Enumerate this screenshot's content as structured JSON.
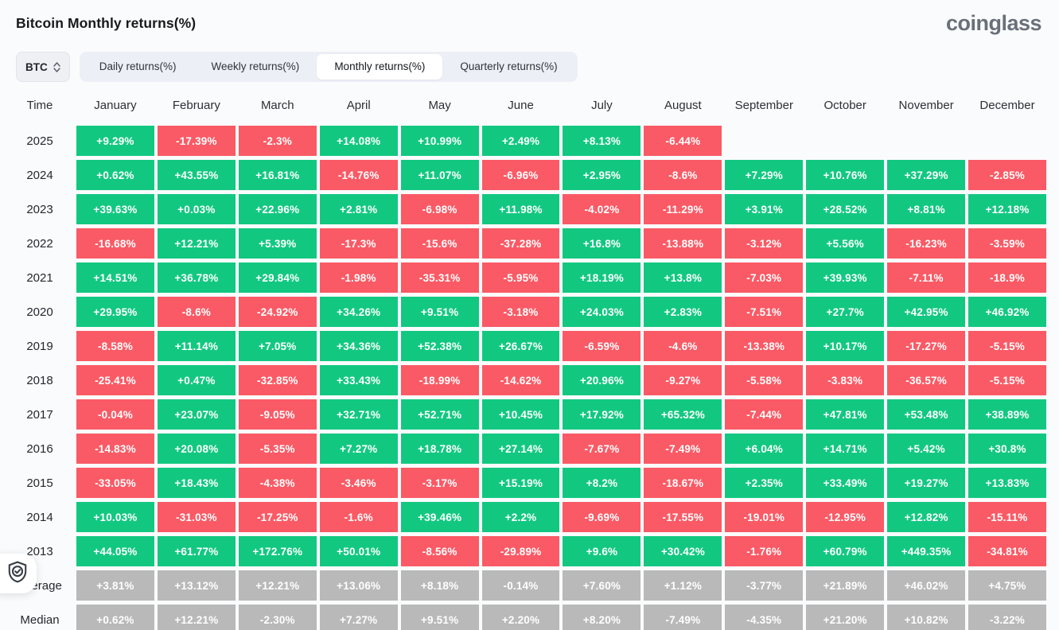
{
  "header": {
    "title": "Bitcoin Monthly returns(%)",
    "logo": "coinglass"
  },
  "controls": {
    "symbol_select": {
      "value": "BTC"
    },
    "tabs": [
      {
        "label": "Daily returns(%)",
        "active": false
      },
      {
        "label": "Weekly returns(%)",
        "active": false
      },
      {
        "label": "Monthly returns(%)",
        "active": true
      },
      {
        "label": "Quarterly returns(%)",
        "active": false
      }
    ]
  },
  "colors": {
    "positive": "#12c881",
    "negative": "#fa5a65",
    "neutral": "#b9b9b9"
  },
  "table": {
    "columns": [
      "Time",
      "January",
      "February",
      "March",
      "April",
      "May",
      "June",
      "July",
      "August",
      "September",
      "October",
      "November",
      "December"
    ],
    "rows": [
      {
        "label": "2025",
        "type": "year",
        "values": [
          "+9.29%",
          "-17.39%",
          "-2.3%",
          "+14.08%",
          "+10.99%",
          "+2.49%",
          "+8.13%",
          "-6.44%",
          "",
          "",
          "",
          ""
        ]
      },
      {
        "label": "2024",
        "type": "year",
        "values": [
          "+0.62%",
          "+43.55%",
          "+16.81%",
          "-14.76%",
          "+11.07%",
          "-6.96%",
          "+2.95%",
          "-8.6%",
          "+7.29%",
          "+10.76%",
          "+37.29%",
          "-2.85%"
        ]
      },
      {
        "label": "2023",
        "type": "year",
        "values": [
          "+39.63%",
          "+0.03%",
          "+22.96%",
          "+2.81%",
          "-6.98%",
          "+11.98%",
          "-4.02%",
          "-11.29%",
          "+3.91%",
          "+28.52%",
          "+8.81%",
          "+12.18%"
        ]
      },
      {
        "label": "2022",
        "type": "year",
        "values": [
          "-16.68%",
          "+12.21%",
          "+5.39%",
          "-17.3%",
          "-15.6%",
          "-37.28%",
          "+16.8%",
          "-13.88%",
          "-3.12%",
          "+5.56%",
          "-16.23%",
          "-3.59%"
        ]
      },
      {
        "label": "2021",
        "type": "year",
        "values": [
          "+14.51%",
          "+36.78%",
          "+29.84%",
          "-1.98%",
          "-35.31%",
          "-5.95%",
          "+18.19%",
          "+13.8%",
          "-7.03%",
          "+39.93%",
          "-7.11%",
          "-18.9%"
        ]
      },
      {
        "label": "2020",
        "type": "year",
        "values": [
          "+29.95%",
          "-8.6%",
          "-24.92%",
          "+34.26%",
          "+9.51%",
          "-3.18%",
          "+24.03%",
          "+2.83%",
          "-7.51%",
          "+27.7%",
          "+42.95%",
          "+46.92%"
        ]
      },
      {
        "label": "2019",
        "type": "year",
        "values": [
          "-8.58%",
          "+11.14%",
          "+7.05%",
          "+34.36%",
          "+52.38%",
          "+26.67%",
          "-6.59%",
          "-4.6%",
          "-13.38%",
          "+10.17%",
          "-17.27%",
          "-5.15%"
        ]
      },
      {
        "label": "2018",
        "type": "year",
        "values": [
          "-25.41%",
          "+0.47%",
          "-32.85%",
          "+33.43%",
          "-18.99%",
          "-14.62%",
          "+20.96%",
          "-9.27%",
          "-5.58%",
          "-3.83%",
          "-36.57%",
          "-5.15%"
        ]
      },
      {
        "label": "2017",
        "type": "year",
        "values": [
          "-0.04%",
          "+23.07%",
          "-9.05%",
          "+32.71%",
          "+52.71%",
          "+10.45%",
          "+17.92%",
          "+65.32%",
          "-7.44%",
          "+47.81%",
          "+53.48%",
          "+38.89%"
        ]
      },
      {
        "label": "2016",
        "type": "year",
        "values": [
          "-14.83%",
          "+20.08%",
          "-5.35%",
          "+7.27%",
          "+18.78%",
          "+27.14%",
          "-7.67%",
          "-7.49%",
          "+6.04%",
          "+14.71%",
          "+5.42%",
          "+30.8%"
        ]
      },
      {
        "label": "2015",
        "type": "year",
        "values": [
          "-33.05%",
          "+18.43%",
          "-4.38%",
          "-3.46%",
          "-3.17%",
          "+15.19%",
          "+8.2%",
          "-18.67%",
          "+2.35%",
          "+33.49%",
          "+19.27%",
          "+13.83%"
        ]
      },
      {
        "label": "2014",
        "type": "year",
        "values": [
          "+10.03%",
          "-31.03%",
          "-17.25%",
          "-1.6%",
          "+39.46%",
          "+2.2%",
          "-9.69%",
          "-17.55%",
          "-19.01%",
          "-12.95%",
          "+12.82%",
          "-15.11%"
        ]
      },
      {
        "label": "2013",
        "type": "year",
        "values": [
          "+44.05%",
          "+61.77%",
          "+172.76%",
          "+50.01%",
          "-8.56%",
          "-29.89%",
          "+9.6%",
          "+30.42%",
          "-1.76%",
          "+60.79%",
          "+449.35%",
          "-34.81%"
        ]
      },
      {
        "label": "Average",
        "type": "summary",
        "values": [
          "+3.81%",
          "+13.12%",
          "+12.21%",
          "+13.06%",
          "+8.18%",
          "-0.14%",
          "+7.60%",
          "+1.12%",
          "-3.77%",
          "+21.89%",
          "+46.02%",
          "+4.75%"
        ]
      },
      {
        "label": "Median",
        "type": "summary",
        "values": [
          "+0.62%",
          "+12.21%",
          "-2.30%",
          "+7.27%",
          "+9.51%",
          "+2.20%",
          "+8.20%",
          "-7.49%",
          "-4.35%",
          "+21.20%",
          "+10.82%",
          "-3.22%"
        ]
      }
    ]
  }
}
